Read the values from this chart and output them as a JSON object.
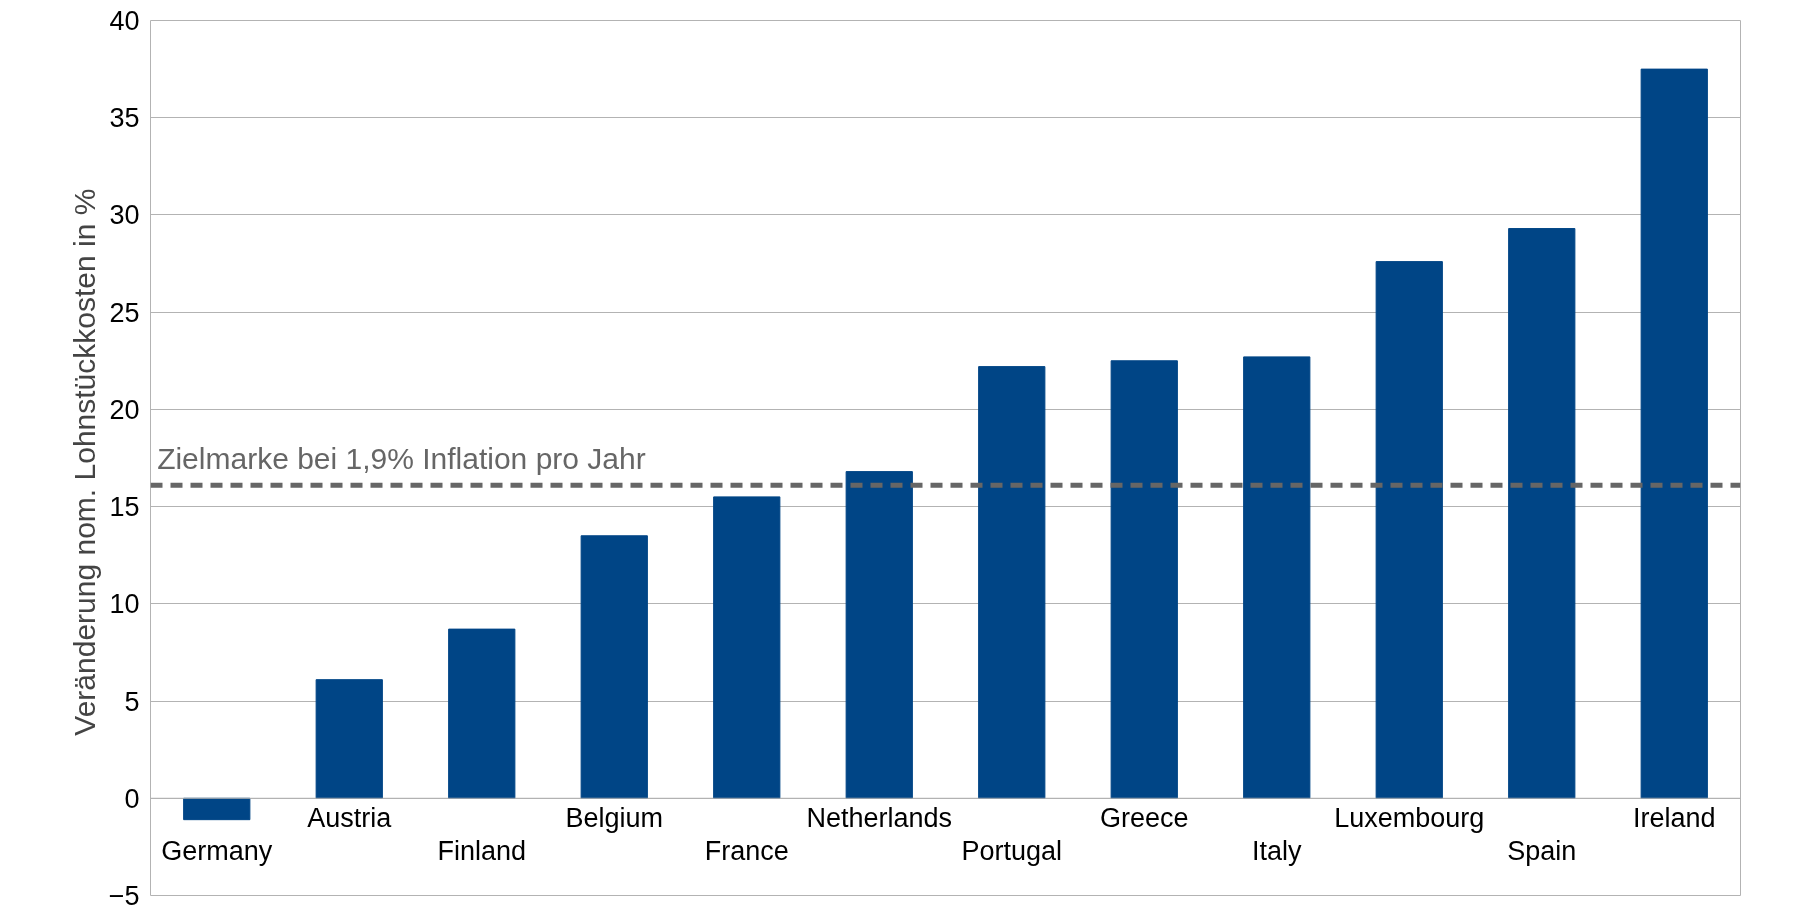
{
  "chart_data": {
    "type": "bar",
    "ylabel": "Veränderung nom. Lohnstückkosten  in %",
    "categories": [
      "Germany",
      "Austria",
      "Finland",
      "Belgium",
      "France",
      "Netherlands",
      "Portugal",
      "Greece",
      "Italy",
      "Luxembourg",
      "Spain",
      "Ireland"
    ],
    "values": [
      -1.1,
      6.1,
      8.7,
      13.5,
      15.5,
      16.8,
      22.2,
      22.5,
      22.7,
      27.6,
      29.3,
      37.5
    ],
    "color": "#004586",
    "ylim": [
      -5,
      40
    ],
    "yticks": [
      -5,
      0,
      5,
      10,
      15,
      20,
      25,
      30,
      35,
      40
    ],
    "grid": "y",
    "ref_lines": [
      {
        "axis": "y",
        "value": 16.1,
        "label": "Zielmarke bei 1,9% Inflation pro Jahr",
        "color": "#666666",
        "line_style": "dashed"
      }
    ]
  }
}
